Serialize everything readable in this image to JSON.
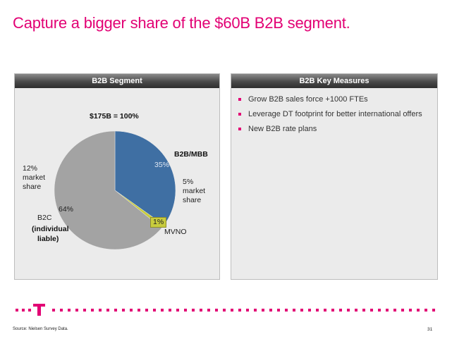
{
  "slide": {
    "title": "Capture a bigger share of the $60B B2B segment.",
    "footer_source": "Source: Nielsen Survey Data.",
    "page_number": "31",
    "brand_color": "#e20074",
    "logo_letter": "T"
  },
  "left_panel": {
    "header": "B2B Segment",
    "total_label": "$175B = 100%",
    "segments": [
      {
        "name": "B2B/MBB",
        "percent_label": "35%",
        "value": 35,
        "color": "#3f6fa3"
      },
      {
        "name": "MVNO",
        "percent_label": "1%",
        "value": 1,
        "color": "#c8cc3e"
      },
      {
        "name": "B2C",
        "percent_label": "64%",
        "value": 64,
        "color": "#a3a3a3"
      }
    ],
    "b2c_sub_1": "(individual",
    "b2c_sub_2": "liable)",
    "b2b_share_1": "5%",
    "b2b_share_2": "market",
    "b2b_share_3": "share",
    "b2c_share_1": "12%",
    "b2c_share_2": "market",
    "b2c_share_3": "share"
  },
  "right_panel": {
    "header": "B2B Key Measures",
    "items": [
      "Grow B2B sales force +1000 FTEs",
      "Leverage DT footprint for better international offers",
      "New B2B rate plans"
    ]
  }
}
